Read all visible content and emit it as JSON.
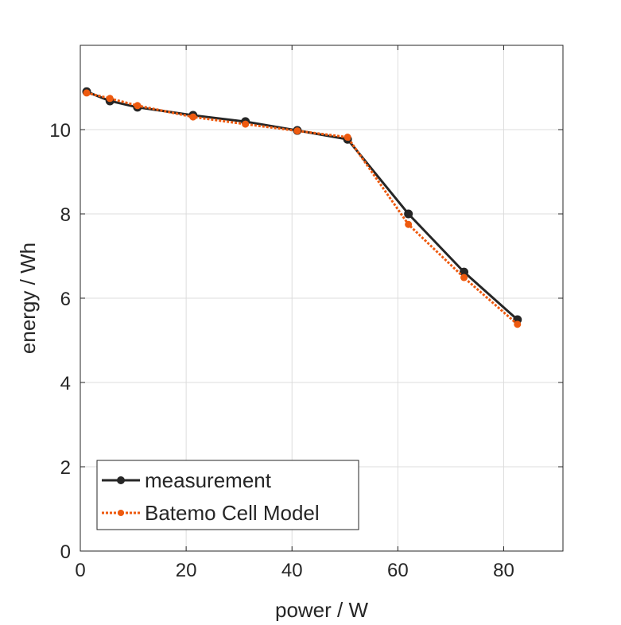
{
  "chart_data": {
    "type": "line",
    "title": "",
    "xlabel": "power / W",
    "ylabel": "energy / Wh",
    "xlim": [
      0,
      91.2
    ],
    "ylim": [
      0,
      12
    ],
    "xticks": [
      0,
      20,
      40,
      60,
      80
    ],
    "yticks": [
      0,
      2,
      4,
      6,
      8,
      10
    ],
    "grid": true,
    "legend_position": "bottom-left",
    "series": [
      {
        "name": "measurement",
        "color": "#262626",
        "style": "solid",
        "x": [
          1.2,
          5.6,
          10.8,
          21.3,
          31.2,
          41.0,
          50.5,
          62.0,
          72.5,
          82.6
        ],
        "y": [
          10.9,
          10.68,
          10.53,
          10.34,
          10.19,
          9.98,
          9.77,
          8.0,
          6.62,
          5.49
        ]
      },
      {
        "name": "Batemo Cell Model",
        "color": "#EE5A0F",
        "style": "dotted",
        "x": [
          1.2,
          5.6,
          10.8,
          21.3,
          31.2,
          41.0,
          50.5,
          62.0,
          72.5,
          82.6
        ],
        "y": [
          10.87,
          10.74,
          10.57,
          10.3,
          10.13,
          9.97,
          9.82,
          7.75,
          6.49,
          5.38
        ]
      }
    ]
  }
}
